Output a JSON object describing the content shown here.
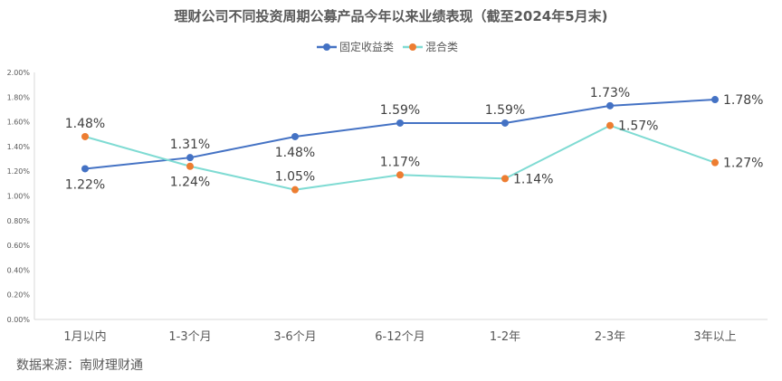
{
  "chart_data": {
    "type": "line",
    "title": "理财公司不同投资周期公募产品今年以来业绩表现（截至2024年5月末)",
    "categories": [
      "1月以内",
      "1-3个月",
      "3-6个月",
      "6-12个月",
      "1-2年",
      "2-3年",
      "3年以上"
    ],
    "series": [
      {
        "name": "固定收益类",
        "color": "#4472c4",
        "marker_color": "#4472c4",
        "values": [
          1.22,
          1.31,
          1.48,
          1.59,
          1.59,
          1.73,
          1.78
        ],
        "labels": [
          "1.22%",
          "1.31%",
          "1.48%",
          "1.59%",
          "1.59%",
          "1.73%",
          "1.78%"
        ]
      },
      {
        "name": "混合类",
        "color": "#7fdbd3",
        "marker_color": "#ed7d31",
        "values": [
          1.48,
          1.24,
          1.05,
          1.17,
          1.14,
          1.57,
          1.27
        ],
        "labels": [
          "1.48%",
          "1.24%",
          "1.05%",
          "1.17%",
          "1.14%",
          "1.57%",
          "1.27%"
        ]
      }
    ],
    "ylim": [
      0,
      2.0
    ],
    "yticks": [
      "0.00%",
      "0.20%",
      "0.40%",
      "0.60%",
      "0.80%",
      "1.00%",
      "1.20%",
      "1.40%",
      "1.60%",
      "1.80%",
      "2.00%"
    ],
    "xlabel": "",
    "ylabel": "",
    "grid": false,
    "legend": "top"
  },
  "source": "数据来源：南财理财通"
}
